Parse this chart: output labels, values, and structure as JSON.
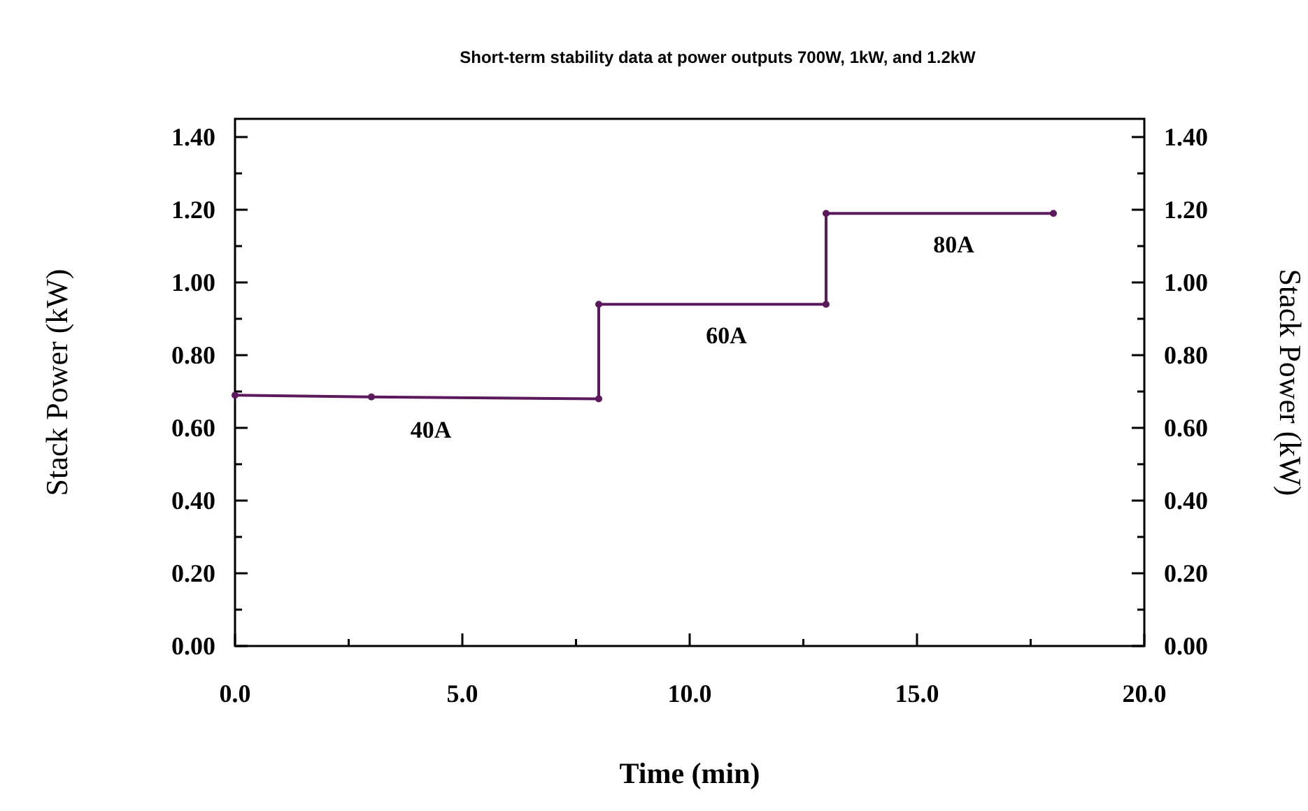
{
  "chart_data": {
    "type": "line",
    "title": "Short-term stability data at power outputs 700W, 1kW, and 1.2kW",
    "xlabel": "Time (min)",
    "ylabel": "Stack Power (kW)",
    "y2label": "Stack Power (kW)",
    "x": [
      0,
      3,
      8,
      8,
      13,
      13,
      18
    ],
    "series": [
      {
        "color": "#5c1a5c",
        "values": [
          0.69,
          0.685,
          0.68,
          0.94,
          0.94,
          1.19,
          1.19
        ]
      }
    ],
    "xlim": [
      0,
      20
    ],
    "xticks": [
      {
        "value": 0,
        "label": "0.0"
      },
      {
        "value": 2.5,
        "label": null
      },
      {
        "value": 5,
        "label": "5.0"
      },
      {
        "value": 7.5,
        "label": null
      },
      {
        "value": 10,
        "label": "10.0"
      },
      {
        "value": 12.5,
        "label": null
      },
      {
        "value": 15,
        "label": "15.0"
      },
      {
        "value": 17.5,
        "label": null
      },
      {
        "value": 20,
        "label": "20.0"
      }
    ],
    "ylim": [
      0,
      1.45
    ],
    "yticks": [
      {
        "value": 0,
        "label": "0.00"
      },
      {
        "value": 0.1,
        "label": null
      },
      {
        "value": 0.2,
        "label": "0.20"
      },
      {
        "value": 0.3,
        "label": null
      },
      {
        "value": 0.4,
        "label": "0.40"
      },
      {
        "value": 0.5,
        "label": null
      },
      {
        "value": 0.6,
        "label": "0.60"
      },
      {
        "value": 0.7,
        "label": null
      },
      {
        "value": 0.8,
        "label": "0.80"
      },
      {
        "value": 0.9,
        "label": null
      },
      {
        "value": 1,
        "label": "1.00"
      },
      {
        "value": 1.1,
        "label": null
      },
      {
        "value": 1.2,
        "label": "1.20"
      },
      {
        "value": 1.3,
        "label": null
      },
      {
        "value": 1.4,
        "label": "1.40"
      }
    ],
    "y2lim": [
      0,
      1.45
    ],
    "y2ticks": [
      {
        "value": 0,
        "label": "0.00"
      },
      {
        "value": 0.1,
        "label": null
      },
      {
        "value": 0.2,
        "label": "0.20"
      },
      {
        "value": 0.3,
        "label": null
      },
      {
        "value": 0.4,
        "label": "0.40"
      },
      {
        "value": 0.5,
        "label": null
      },
      {
        "value": 0.6,
        "label": "0.60"
      },
      {
        "value": 0.7,
        "label": null
      },
      {
        "value": 0.8,
        "label": "0.80"
      },
      {
        "value": 0.9,
        "label": null
      },
      {
        "value": 1,
        "label": "1.00"
      },
      {
        "value": 1.1,
        "label": null
      },
      {
        "value": 1.2,
        "label": "1.20"
      },
      {
        "value": 1.3,
        "label": null
      },
      {
        "value": 1.4,
        "label": "1.40"
      }
    ],
    "annotations": [
      "40A",
      "60A",
      "80A"
    ],
    "marker": "circle",
    "line_style": "solid",
    "grid": false
  }
}
